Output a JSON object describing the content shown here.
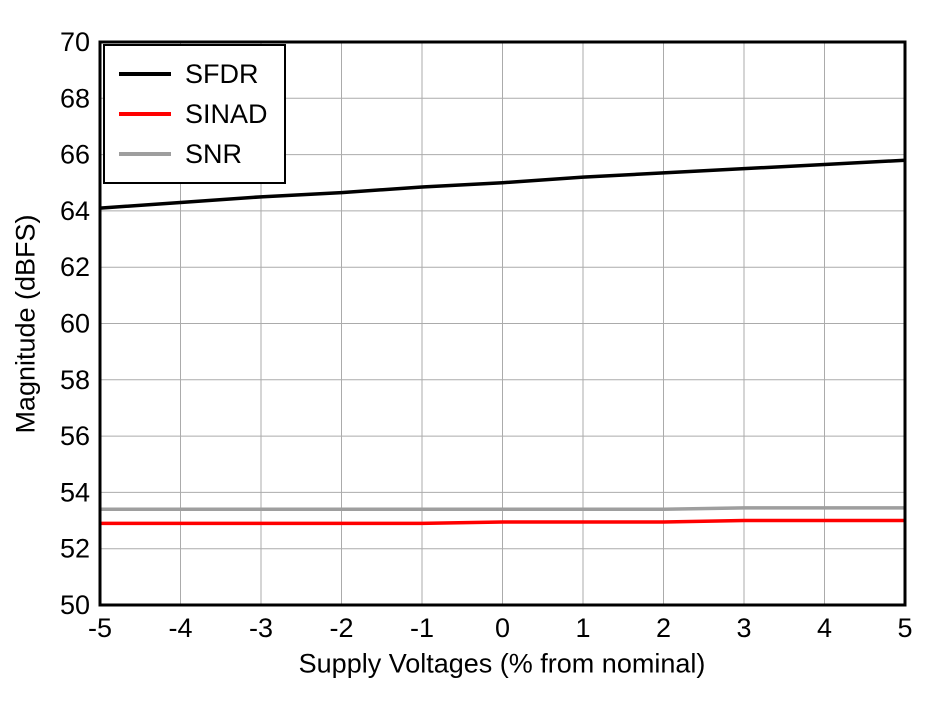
{
  "chart_data": {
    "type": "line",
    "title": "",
    "xlabel": "Supply Voltages (% from nominal)",
    "ylabel": "Magnitude (dBFS)",
    "xlim": [
      -5,
      5
    ],
    "ylim": [
      50,
      70
    ],
    "xticks": [
      -5,
      -4,
      -3,
      -2,
      -1,
      0,
      1,
      2,
      3,
      4,
      5
    ],
    "yticks": [
      50,
      52,
      54,
      56,
      58,
      60,
      62,
      64,
      66,
      68,
      70
    ],
    "grid": true,
    "grid_color": "#ababab",
    "axis_color": "#000000",
    "legend_position": "top-left",
    "x": [
      -5,
      -4,
      -3,
      -2,
      -1,
      0,
      1,
      2,
      3,
      4,
      5
    ],
    "series": [
      {
        "name": "SFDR",
        "color": "#000000",
        "values": [
          64.1,
          64.3,
          64.5,
          64.65,
          64.85,
          65.0,
          65.2,
          65.35,
          65.5,
          65.65,
          65.8
        ]
      },
      {
        "name": "SINAD",
        "color": "#ff0000",
        "values": [
          52.9,
          52.9,
          52.9,
          52.9,
          52.9,
          52.95,
          52.95,
          52.95,
          53.0,
          53.0,
          53.0
        ]
      },
      {
        "name": "SNR",
        "color": "#9e9e9e",
        "values": [
          53.4,
          53.4,
          53.4,
          53.4,
          53.4,
          53.4,
          53.4,
          53.4,
          53.45,
          53.45,
          53.45
        ]
      }
    ]
  }
}
